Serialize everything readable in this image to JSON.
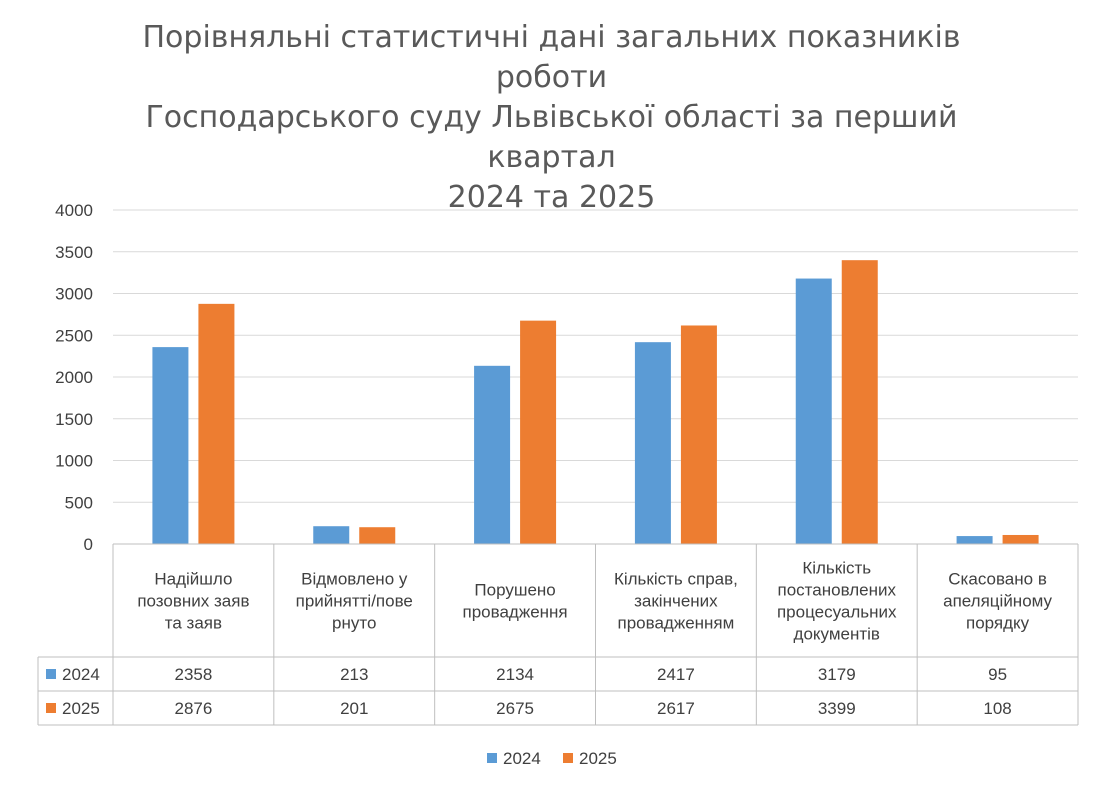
{
  "chart_data": {
    "type": "bar",
    "title_lines": [
      "Порівняльні статистичні дані загальних показників роботи",
      "Господарського суду Львівської області за перший квартал",
      "2024 та 2025"
    ],
    "categories": [
      [
        "Надійшло",
        "позовних заяв",
        "та заяв"
      ],
      [
        "Відмовлено у",
        "прийнятті/пове",
        "рнуто"
      ],
      [
        "Порушено",
        "провадження"
      ],
      [
        "Кількість справ,",
        "закінчених",
        "провадженням"
      ],
      [
        "Кількість",
        "постановлених",
        "процесуальних",
        "документів"
      ],
      [
        "Скасовано в",
        "апеляційному",
        "порядку"
      ]
    ],
    "series": [
      {
        "name": "2024",
        "color": "#5B9BD5",
        "values": [
          2358,
          213,
          2134,
          2417,
          3179,
          95
        ]
      },
      {
        "name": "2025",
        "color": "#ED7D31",
        "values": [
          2876,
          201,
          2675,
          2617,
          3399,
          108
        ]
      }
    ],
    "ylim": [
      0,
      4000
    ],
    "yticks": [
      0,
      500,
      1000,
      1500,
      2000,
      2500,
      3000,
      3500,
      4000
    ],
    "grid": true,
    "legend_position": "bottom",
    "data_table": true
  }
}
